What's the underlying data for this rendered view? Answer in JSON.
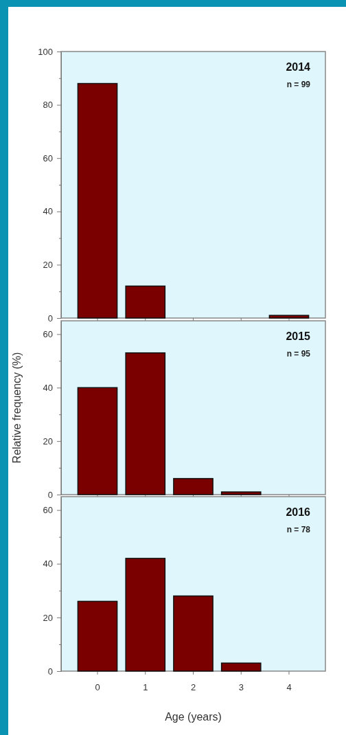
{
  "chart_data": [
    {
      "type": "bar",
      "title": "2014",
      "subtitle": "n = 99",
      "categories": [
        "0",
        "1",
        "2",
        "3",
        "4"
      ],
      "values": [
        88,
        12,
        0,
        0,
        1
      ],
      "color": "#7a0000",
      "ylim": [
        0,
        100
      ],
      "yticks": [
        0,
        {
          "value": 10,
          "label": null
        },
        20,
        {
          "value": 30,
          "label": null
        },
        40,
        {
          "value": 50,
          "label": null
        },
        60,
        {
          "value": 70,
          "label": null
        },
        80,
        {
          "value": 90,
          "label": null
        },
        100
      ],
      "tick_labels": "y"
    },
    {
      "type": "bar",
      "title": "2015",
      "subtitle": "n = 95",
      "ylabel": "Relative frequency (%)",
      "categories": [
        "0",
        "1",
        "2",
        "3",
        "4"
      ],
      "values": [
        40,
        53,
        6,
        1,
        0
      ],
      "color": "#7a0000",
      "ylim": [
        0,
        65
      ],
      "yticks": [
        0,
        {
          "value": 10,
          "label": null
        },
        20,
        {
          "value": 30,
          "label": null
        },
        40,
        {
          "value": 50,
          "label": null
        },
        60
      ],
      "tick_labels": "y"
    },
    {
      "type": "bar",
      "title": "2016",
      "subtitle": "n = 78",
      "xlabel": "Age (years)",
      "categories": [
        "0",
        "1",
        "2",
        "3",
        "4"
      ],
      "values": [
        26,
        42,
        28,
        3,
        0
      ],
      "color": "#7a0000",
      "ylim": [
        0,
        65
      ],
      "yticks": [
        0,
        {
          "value": 10,
          "label": null
        },
        20,
        {
          "value": 30,
          "label": null
        },
        40,
        {
          "value": 50,
          "label": null
        },
        60
      ]
    }
  ]
}
